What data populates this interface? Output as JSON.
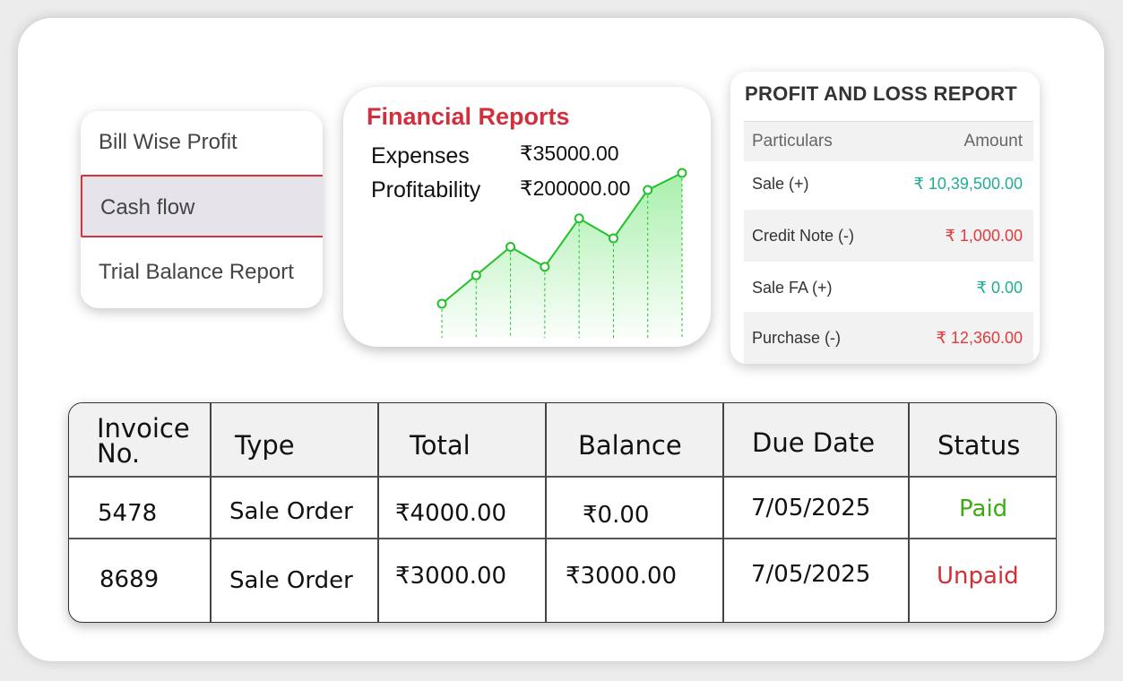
{
  "menu": {
    "items": [
      {
        "label": "Bill Wise Profit",
        "active": false
      },
      {
        "label": "Cash flow",
        "active": true
      },
      {
        "label": "Trial Balance Report",
        "active": false
      }
    ]
  },
  "financial_reports": {
    "title": "Financial Reports",
    "rows": [
      {
        "label": "Expenses",
        "value": "₹35000.00"
      },
      {
        "label": "Profitability",
        "value": "₹200000.00"
      }
    ],
    "trend": [
      1,
      2,
      3,
      2.3,
      4,
      3.3,
      5,
      5.6
    ],
    "accent_color": "#22c12a"
  },
  "profit_loss": {
    "title": "PROFIT AND LOSS REPORT",
    "header": {
      "particulars": "Particulars",
      "amount": "Amount"
    },
    "rows": [
      {
        "label": "Sale (+)",
        "amount": "₹ 10,39,500.00",
        "color": "#1fae94"
      },
      {
        "label": "Credit Note (-)",
        "amount": "₹ 1,000.00",
        "color": "#e23b3f"
      },
      {
        "label": "Sale FA (+)",
        "amount": "₹ 0.00",
        "color": "#1fae94"
      },
      {
        "label": "Purchase (-)",
        "amount": "₹ 12,360.00",
        "color": "#e23b3f"
      }
    ]
  },
  "invoices": {
    "headers": {
      "invoice_no_line1": "Invoice",
      "invoice_no_line2": "No.",
      "type": "Type",
      "total": "Total",
      "balance": "Balance",
      "due_date": "Due Date",
      "status": "Status"
    },
    "rows": [
      {
        "invoice_no": "5478",
        "type": "Sale Order",
        "total": "₹4000.00",
        "balance": "₹0.00",
        "due_date": "7/05/2025",
        "status": "Paid"
      },
      {
        "invoice_no": "8689",
        "type": "Sale Order",
        "total": "₹3000.00",
        "balance": "₹3000.00",
        "due_date": "7/05/2025",
        "status": "Unpaid"
      }
    ]
  }
}
